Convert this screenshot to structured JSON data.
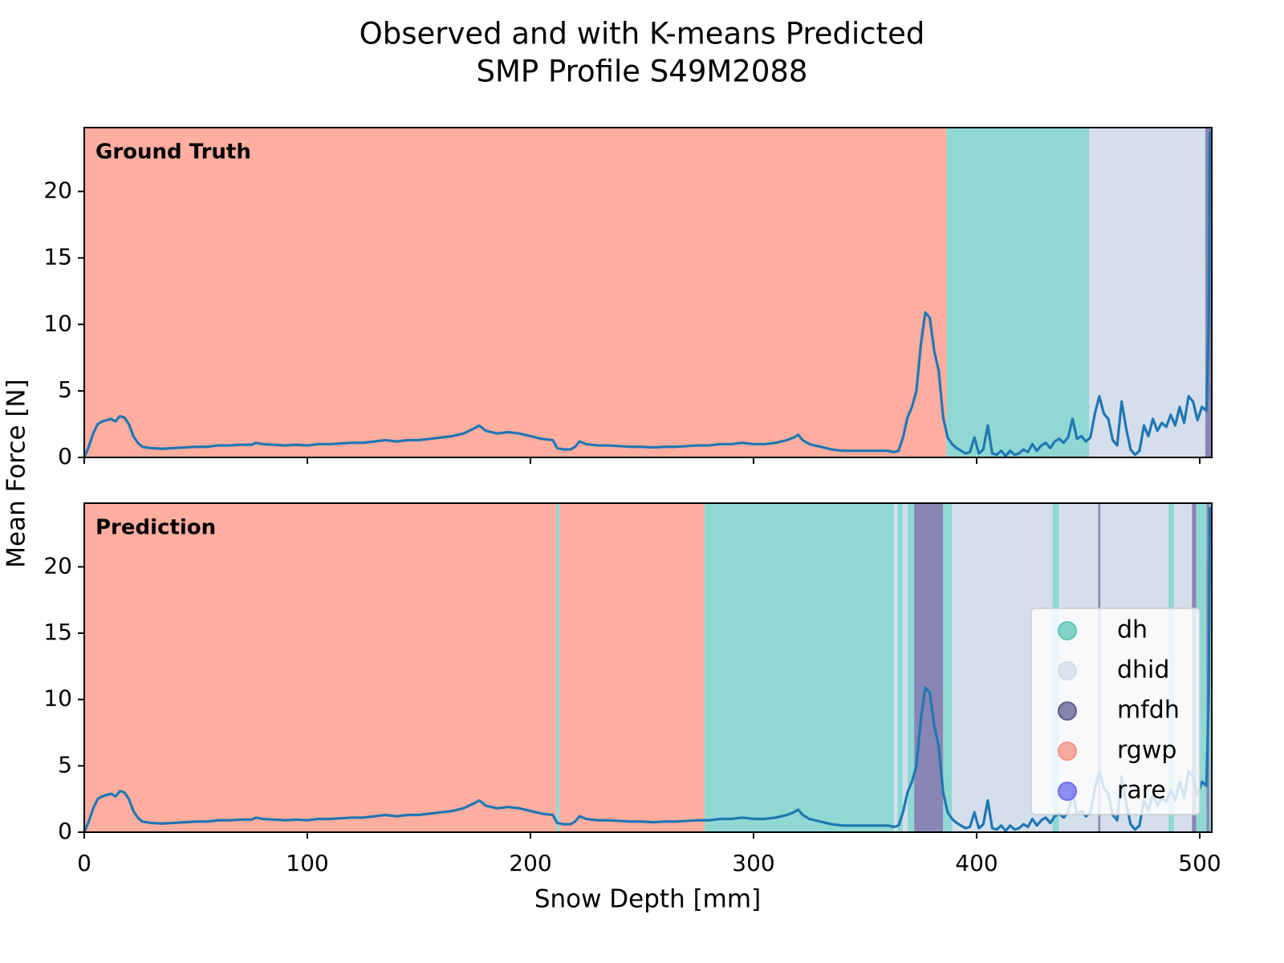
{
  "chart_data": {
    "type": "line",
    "title": [
      "Observed and with K-means Predicted",
      "SMP Profile S49M2088"
    ],
    "xlabel": "Snow Depth [mm]",
    "ylabel": "Mean Force [N]",
    "color": "#1f77b4",
    "xlim": [
      0,
      505.4
    ],
    "xticks": [
      0,
      100,
      200,
      300,
      400,
      500
    ],
    "ylim": [
      0,
      24.8
    ],
    "yticks": [
      0,
      5,
      10,
      15,
      20
    ],
    "legend_loc": "lower right",
    "classes": [
      {
        "name": "dh",
        "color": "#90d8d3",
        "marker": "#5cc5b8"
      },
      {
        "name": "dhid",
        "color": "#d5dfeb",
        "marker": "#d2dcea"
      },
      {
        "name": "mfdh",
        "color": "#8886b4",
        "marker": "#5e5e90"
      },
      {
        "name": "rgwp",
        "color": "#ffaea0",
        "marker": "#f69282"
      },
      {
        "name": "rare",
        "color": "#6a6af0",
        "marker": "#6a6af0"
      }
    ],
    "panels": [
      {
        "label": "Ground Truth",
        "legend": false,
        "segments": [
          {
            "class": "rgwp",
            "start": 0,
            "end": 386.5
          },
          {
            "class": "dh",
            "start": 386.5,
            "end": 450.5
          },
          {
            "class": "dhid",
            "start": 450.5,
            "end": 502.5
          },
          {
            "class": "mfdh",
            "start": 502.5,
            "end": 505.4
          }
        ]
      },
      {
        "label": "Prediction",
        "legend": true,
        "segments": [
          {
            "class": "rgwp",
            "start": 0,
            "end": 211.5
          },
          {
            "class": "dh",
            "start": 211.5,
            "end": 213
          },
          {
            "class": "rgwp",
            "start": 213,
            "end": 278
          },
          {
            "class": "dh",
            "start": 278,
            "end": 363
          },
          {
            "class": "dhid",
            "start": 363,
            "end": 364.5
          },
          {
            "class": "dh",
            "start": 364.5,
            "end": 367
          },
          {
            "class": "dhid",
            "start": 367,
            "end": 369
          },
          {
            "class": "dh",
            "start": 369,
            "end": 372
          },
          {
            "class": "mfdh",
            "start": 372,
            "end": 385
          },
          {
            "class": "dh",
            "start": 385,
            "end": 389
          },
          {
            "class": "dhid",
            "start": 389,
            "end": 434
          },
          {
            "class": "dh",
            "start": 434,
            "end": 437
          },
          {
            "class": "dhid",
            "start": 437,
            "end": 454.5
          },
          {
            "class": "mfdh",
            "start": 454.5,
            "end": 455.5
          },
          {
            "class": "dhid",
            "start": 455.5,
            "end": 486
          },
          {
            "class": "dh",
            "start": 486,
            "end": 488.5
          },
          {
            "class": "dhid",
            "start": 488.5,
            "end": 496.5
          },
          {
            "class": "mfdh",
            "start": 496.5,
            "end": 498.5
          },
          {
            "class": "dh",
            "start": 498.5,
            "end": 503
          },
          {
            "class": "mfdh",
            "start": 503,
            "end": 504.3
          },
          {
            "class": "dh",
            "start": 504.3,
            "end": 505.4
          }
        ]
      }
    ],
    "x": [
      0,
      2,
      4,
      6,
      8,
      10,
      12,
      14,
      16,
      18,
      20,
      22,
      24,
      26,
      30,
      35,
      40,
      45,
      50,
      55,
      60,
      65,
      70,
      75,
      77,
      80,
      85,
      90,
      95,
      100,
      105,
      110,
      115,
      120,
      125,
      130,
      135,
      140,
      145,
      150,
      155,
      160,
      165,
      170,
      175,
      177,
      180,
      185,
      190,
      195,
      200,
      205,
      210,
      212,
      215,
      218,
      220,
      222,
      225,
      230,
      235,
      240,
      245,
      250,
      255,
      260,
      265,
      270,
      275,
      280,
      285,
      290,
      295,
      300,
      305,
      310,
      315,
      318,
      320,
      322,
      325,
      330,
      335,
      340,
      345,
      350,
      355,
      360,
      363,
      365,
      367,
      369,
      371,
      373,
      375,
      377,
      379,
      381,
      383,
      385,
      387,
      389,
      391,
      393,
      395,
      397,
      399,
      401,
      403,
      405,
      407,
      409,
      411,
      413,
      415,
      417,
      419,
      421,
      423,
      425,
      427,
      429,
      431,
      433,
      435,
      437,
      439,
      441,
      443,
      445,
      447,
      449,
      451,
      453,
      455,
      457,
      459,
      461,
      463,
      465,
      467,
      469,
      471,
      473,
      475,
      477,
      479,
      481,
      483,
      485,
      487,
      489,
      491,
      493,
      495,
      497,
      499,
      501,
      503,
      504,
      504.5
    ],
    "values": [
      0,
      0.8,
      1.8,
      2.5,
      2.7,
      2.8,
      2.9,
      2.7,
      3.1,
      3.0,
      2.5,
      1.6,
      1.1,
      0.8,
      0.7,
      0.65,
      0.7,
      0.75,
      0.8,
      0.8,
      0.9,
      0.9,
      0.95,
      0.95,
      1.1,
      1.0,
      0.95,
      0.9,
      0.95,
      0.9,
      1.0,
      1.0,
      1.05,
      1.1,
      1.1,
      1.2,
      1.3,
      1.2,
      1.3,
      1.3,
      1.4,
      1.5,
      1.6,
      1.8,
      2.2,
      2.4,
      2.0,
      1.8,
      1.9,
      1.8,
      1.6,
      1.4,
      1.3,
      0.7,
      0.6,
      0.6,
      0.8,
      1.2,
      1.0,
      0.9,
      0.9,
      0.85,
      0.8,
      0.8,
      0.75,
      0.8,
      0.8,
      0.85,
      0.9,
      0.9,
      1.0,
      1.0,
      1.1,
      1.0,
      1.0,
      1.1,
      1.3,
      1.5,
      1.7,
      1.3,
      1.0,
      0.8,
      0.6,
      0.5,
      0.5,
      0.5,
      0.5,
      0.5,
      0.4,
      0.5,
      1.5,
      3.0,
      3.8,
      5.0,
      8.5,
      10.9,
      10.5,
      8.0,
      6.5,
      3.0,
      1.5,
      1.0,
      0.7,
      0.5,
      0.3,
      0.4,
      1.5,
      0.3,
      0.6,
      2.4,
      0.3,
      0.2,
      0.5,
      0.1,
      0.5,
      0.2,
      0.3,
      0.6,
      0.4,
      1.0,
      0.5,
      0.9,
      1.1,
      0.7,
      1.2,
      1.4,
      1.1,
      1.5,
      2.9,
      1.4,
      1.6,
      1.2,
      1.5,
      3.3,
      4.6,
      3.3,
      2.9,
      1.3,
      0.9,
      4.2,
      2.2,
      0.6,
      0.2,
      0.5,
      2.4,
      1.6,
      2.9,
      2.0,
      2.6,
      2.3,
      3.2,
      2.4,
      3.8,
      2.6,
      4.6,
      4.2,
      2.8,
      3.8,
      3.5,
      10.0,
      24.5
    ]
  }
}
